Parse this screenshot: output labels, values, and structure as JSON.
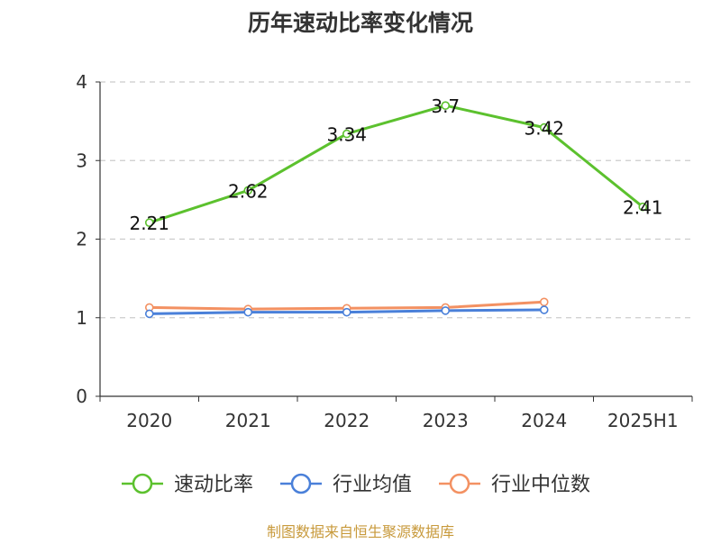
{
  "chart_data": {
    "type": "line",
    "title": "历年速动比率变化情况",
    "xlabel": "",
    "ylabel": "",
    "categories": [
      "2020",
      "2021",
      "2022",
      "2023",
      "2024",
      "2025H1"
    ],
    "ylim": [
      0,
      4
    ],
    "yticks": [
      "0",
      "1",
      "2",
      "3",
      "4"
    ],
    "grid": true,
    "legend_position": "bottom",
    "series": [
      {
        "name": "速动比率",
        "color": "#5cc12e",
        "values": [
          2.21,
          2.62,
          3.34,
          3.7,
          3.42,
          2.41
        ],
        "labels": [
          "2.21",
          "2.62",
          "3.34",
          "3.7",
          "3.42",
          "2.41"
        ]
      },
      {
        "name": "行业均值",
        "color": "#4a80d9",
        "values": [
          1.05,
          1.07,
          1.07,
          1.09,
          1.1,
          null
        ]
      },
      {
        "name": "行业中位数",
        "color": "#f39162",
        "values": [
          1.13,
          1.11,
          1.12,
          1.13,
          1.2,
          null
        ]
      }
    ],
    "source": "制图数据来自恒生聚源数据库"
  }
}
